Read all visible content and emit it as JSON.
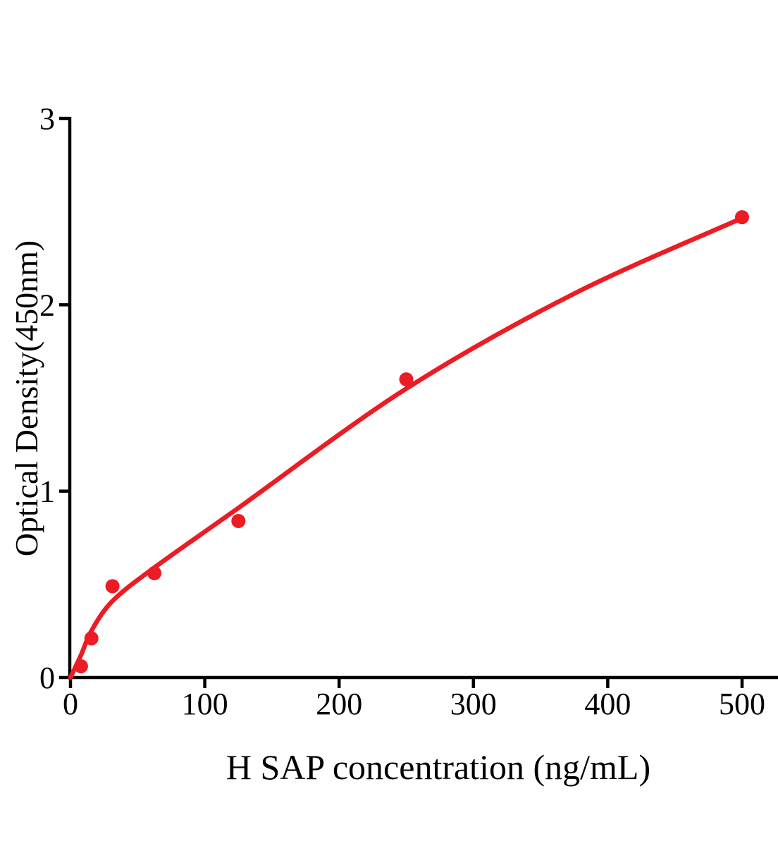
{
  "figure": {
    "background": "#ffffff"
  },
  "chart_data": {
    "type": "scatter",
    "title": "",
    "xlabel": "H SAP concentration (ng/mL)",
    "ylabel": "Optical Density(450nm)",
    "x_ticks": [
      0,
      100,
      200,
      300,
      400,
      500
    ],
    "y_ticks": [
      0,
      1,
      2,
      3
    ],
    "xlim": [
      0,
      527
    ],
    "ylim": [
      0,
      3
    ],
    "grid": false,
    "legend_position": "none",
    "axis_color": "#000000",
    "text_color": "#000000",
    "series": [
      {
        "name": "standard-points",
        "type": "scatter",
        "color": "#ec1c24",
        "marker": "circle",
        "marker_radius": 10,
        "points": [
          {
            "x": 7.8,
            "y": 0.06
          },
          {
            "x": 15.6,
            "y": 0.21
          },
          {
            "x": 31.25,
            "y": 0.49
          },
          {
            "x": 62.5,
            "y": 0.56
          },
          {
            "x": 125,
            "y": 0.84
          },
          {
            "x": 250,
            "y": 1.6
          },
          {
            "x": 500,
            "y": 2.47
          }
        ]
      },
      {
        "name": "fitted-curve",
        "type": "line",
        "color": "#ec1c24",
        "line_width": 6.5,
        "points": [
          {
            "x": 0,
            "y": 0
          },
          {
            "x": 7.8,
            "y": 0.12
          },
          {
            "x": 15.6,
            "y": 0.25
          },
          {
            "x": 31.25,
            "y": 0.41
          },
          {
            "x": 62.5,
            "y": 0.59
          },
          {
            "x": 125,
            "y": 0.91
          },
          {
            "x": 250,
            "y": 1.55
          },
          {
            "x": 375,
            "y": 2.06
          },
          {
            "x": 500,
            "y": 2.465
          }
        ]
      }
    ]
  }
}
